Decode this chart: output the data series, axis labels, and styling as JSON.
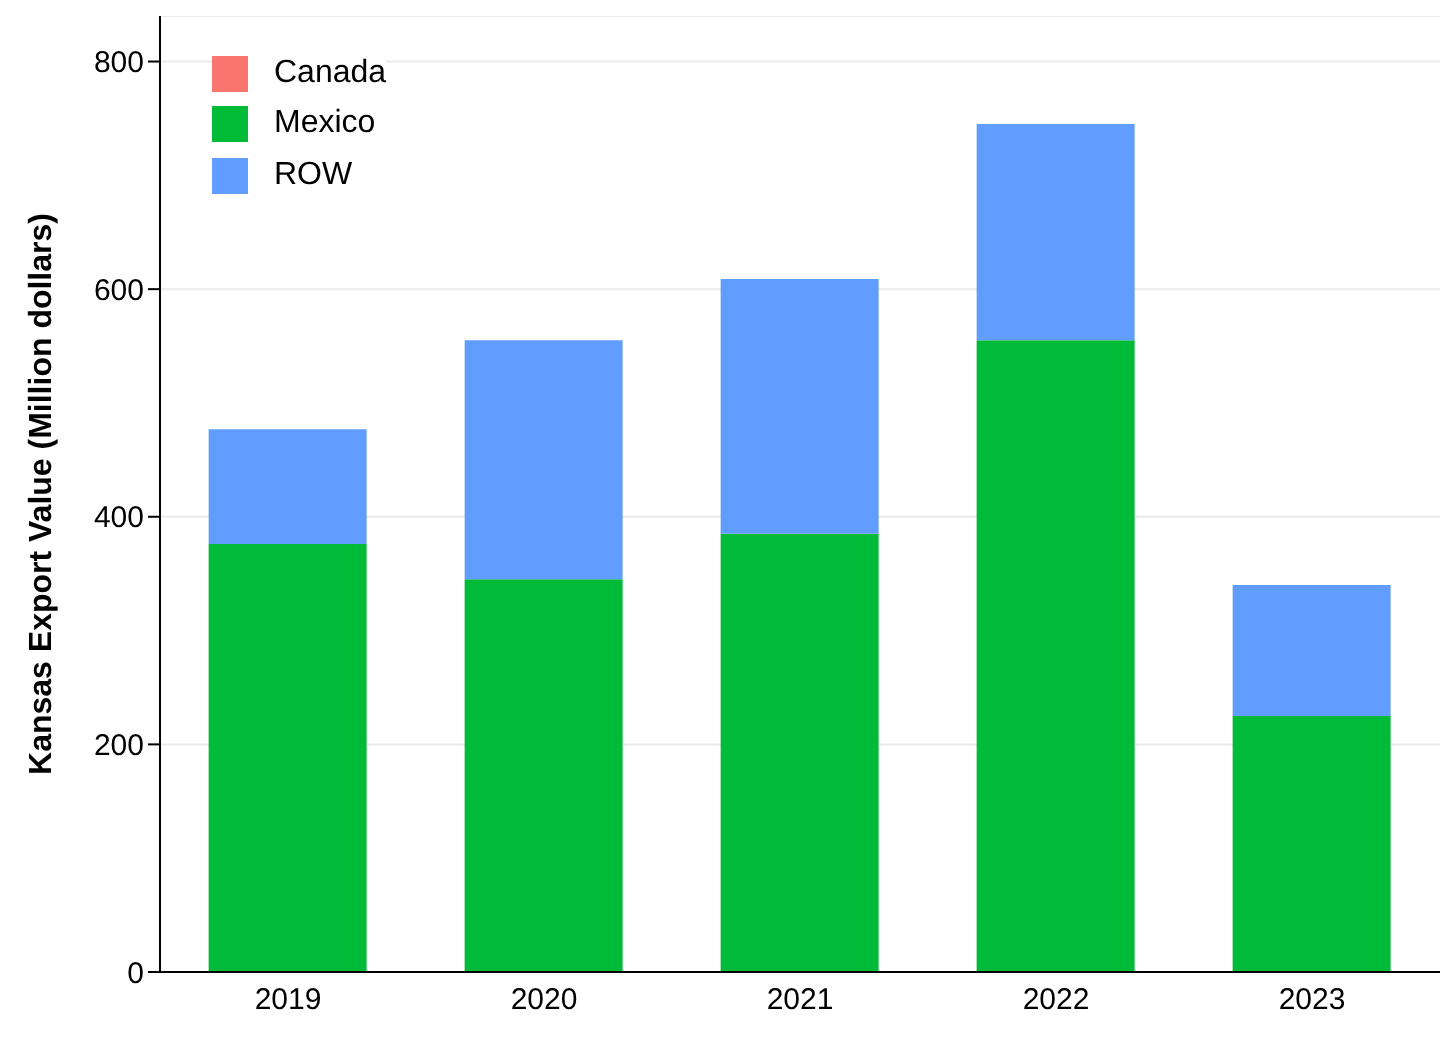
{
  "chart_data": {
    "type": "bar",
    "ylabel": "Kansas Export Value (Million dollars)",
    "categories": [
      "2019",
      "2020",
      "2021",
      "2022",
      "2023"
    ],
    "stacked": true,
    "series": [
      {
        "name": "Canada",
        "color": "#f8766d",
        "values": [
          0,
          0,
          0,
          0,
          0
        ]
      },
      {
        "name": "Mexico",
        "color": "#00ba38",
        "values": [
          376,
          345,
          385,
          555,
          225
        ]
      },
      {
        "name": "ROW",
        "color": "#619cff",
        "values": [
          101,
          210,
          224,
          190,
          115
        ]
      }
    ],
    "ylim": [
      0,
      840
    ],
    "yticks": [
      0,
      200,
      400,
      600,
      800
    ],
    "grid": "y",
    "legend": "top left"
  }
}
